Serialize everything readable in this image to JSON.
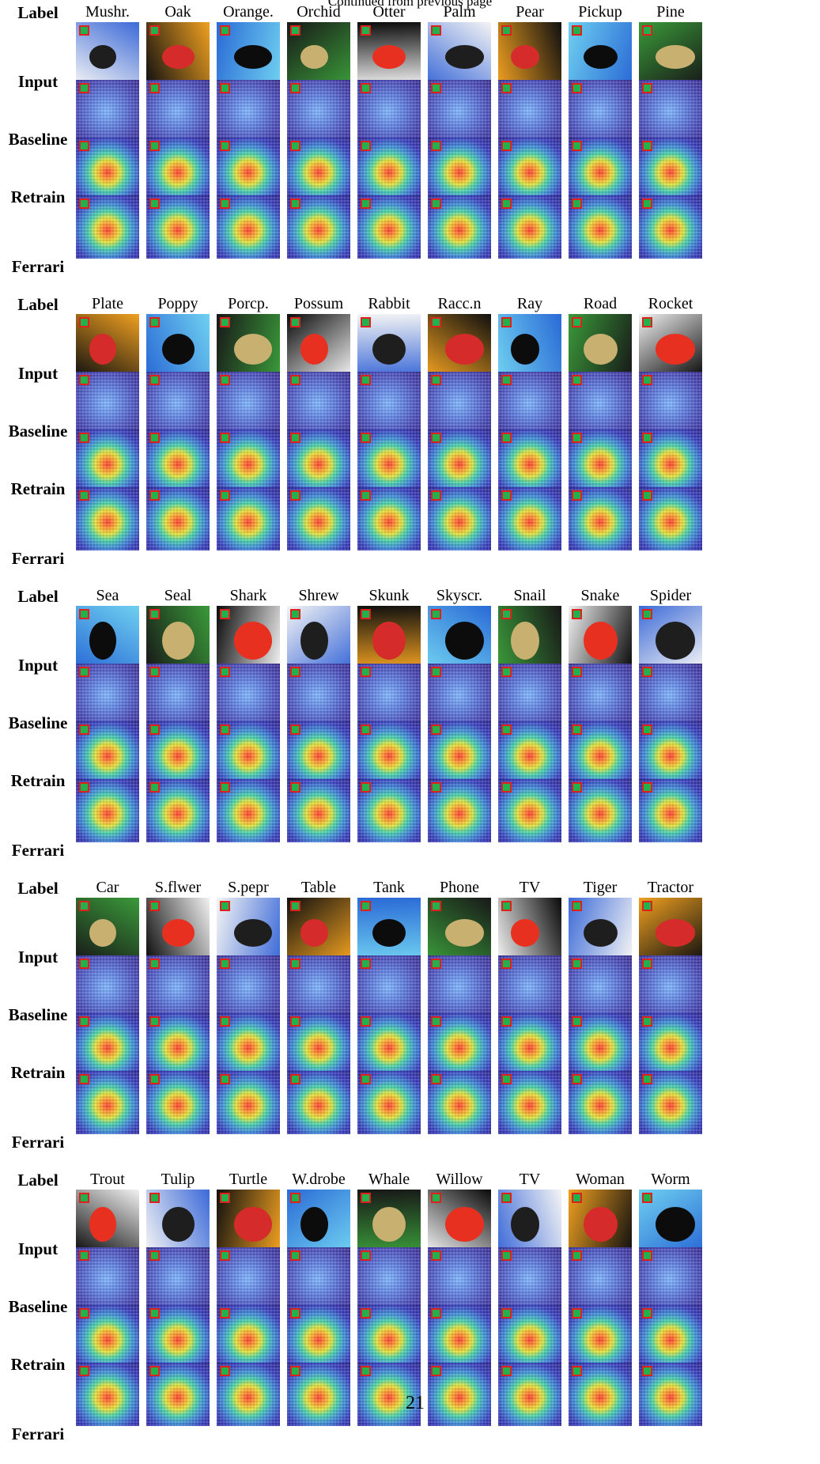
{
  "header_note": "Continued from previous page",
  "page_number": "21",
  "row_labels": {
    "label": "Label",
    "input": "Input",
    "baseline": "Baseline",
    "retrain": "Retrain",
    "ferrari": "Ferrari"
  },
  "sections": [
    {
      "classes": [
        "Mushr.",
        "Oak",
        "Orange.",
        "Orchid",
        "Otter",
        "Palm",
        "Pear",
        "Pickup",
        "Pine"
      ]
    },
    {
      "classes": [
        "Plate",
        "Poppy",
        "Porcp.",
        "Possum",
        "Rabbit",
        "Racc.n",
        "Ray",
        "Road",
        "Rocket"
      ]
    },
    {
      "classes": [
        "Sea",
        "Seal",
        "Shark",
        "Shrew",
        "Skunk",
        "Skyscr.",
        "Snail",
        "Snake",
        "Spider"
      ]
    },
    {
      "classes": [
        "Car",
        "S.flwer",
        "S.pepr",
        "Table",
        "Tank",
        "Phone",
        "TV",
        "Tiger",
        "Tractor"
      ]
    },
    {
      "classes": [
        "Trout",
        "Tulip",
        "Turtle",
        "W.drobe",
        "Whale",
        "Willow",
        "TV",
        "Woman",
        "Worm"
      ]
    }
  ],
  "colors": {
    "marker_border": "#e0201a",
    "marker_fill": "#22b14c",
    "heat_hot": "#ff3b2f",
    "heat_cold": "#30288f"
  },
  "input_palettes": [
    [
      "#f4f4f4",
      "#1e1e1e",
      "#3c6ad8"
    ],
    [
      "#101010",
      "#d62b2b",
      "#f0a020"
    ],
    [
      "#2a6ad6",
      "#0c0c0c",
      "#6fd0f0"
    ],
    [
      "#181818",
      "#c8b070",
      "#3a9a3a"
    ],
    [
      "#0a0a0a",
      "#e83020",
      "#f2f2f2"
    ]
  ]
}
